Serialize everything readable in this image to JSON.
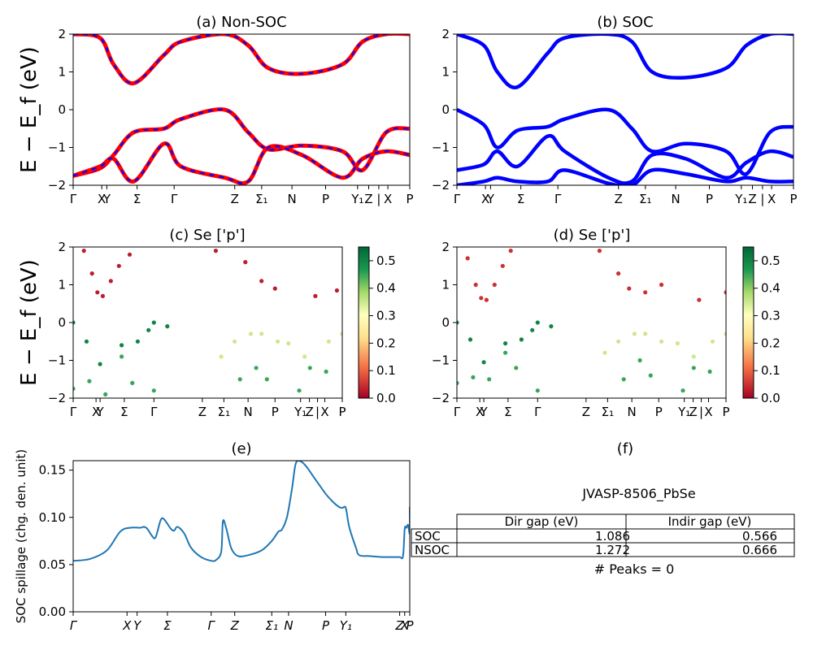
{
  "figure": {
    "ylabel_bands": "E − E_f (eV)",
    "energy_ticks": [
      "2",
      "1",
      "0",
      "−1",
      "−2"
    ],
    "kpath_ticks": [
      "Γ",
      "X",
      "Y",
      "Σ",
      "Γ",
      "Z",
      "Σ₁",
      "N",
      "P",
      "Y₁",
      "Z",
      "|",
      "X",
      "P"
    ],
    "colorbar_ticks": [
      "0.5",
      "0.4",
      "0.3",
      "0.2",
      "0.1",
      "0.0"
    ]
  },
  "panels": {
    "a": {
      "title": "(a) Non-SOC"
    },
    "b": {
      "title": "(b) SOC"
    },
    "c": {
      "title": "(c)  Se ['p']"
    },
    "d": {
      "title": "(d) Se ['p']"
    },
    "e": {
      "title": "(e)",
      "ylabel": "SOC spillage (chg. den. unit)",
      "yticks": [
        "0.15",
        "0.10",
        "0.05",
        "0.00"
      ],
      "xticks": [
        "Γ",
        "X",
        "Y",
        "Σ",
        "Γ",
        "Z",
        "Σ₁",
        "N",
        "P",
        "Y₁",
        "Z",
        "X",
        "P"
      ]
    },
    "f": {
      "title": "(f)"
    }
  },
  "table": {
    "title": "JVASP-8506_PbSe",
    "headers": [
      "Dir gap (eV)",
      "Indir gap (eV)"
    ],
    "rows": [
      {
        "label": "SOC",
        "dir": "1.086",
        "indir": "0.566"
      },
      {
        "label": "NSOC",
        "dir": "1.272",
        "indir": "0.666"
      }
    ],
    "footer": "# Peaks = 0"
  },
  "colors": {
    "nonsoc_band": "#ff0000",
    "nonsoc_dash": "#0000ff",
    "soc_band": "#0000ff",
    "spillage_line": "#1f77b4"
  },
  "chart_data": [
    {
      "type": "line",
      "panel": "a",
      "title": "(a) Non-SOC",
      "ylabel": "E − E_f (eV)",
      "ylim": [
        -2,
        2
      ],
      "x": [
        0,
        0.08,
        0.12,
        0.18,
        0.27,
        0.32,
        0.45,
        0.52,
        0.58,
        0.68,
        0.8,
        0.86,
        0.93,
        1.0
      ],
      "series": [
        {
          "name": "band1",
          "values": [
            2.0,
            1.9,
            1.2,
            0.7,
            1.45,
            1.8,
            2.0,
            1.7,
            1.1,
            0.95,
            1.2,
            1.8,
            2.0,
            2.0
          ]
        },
        {
          "name": "band2",
          "values": [
            -1.75,
            -1.55,
            -1.2,
            -0.6,
            -0.5,
            -0.25,
            0.0,
            -0.6,
            -1.05,
            -0.95,
            -1.1,
            -1.6,
            -0.6,
            -0.5
          ]
        },
        {
          "name": "band3",
          "values": [
            -1.75,
            -1.5,
            -1.3,
            -1.9,
            -0.9,
            -1.5,
            -1.8,
            -1.9,
            -1.0,
            -1.2,
            -1.8,
            -1.3,
            -1.1,
            -1.2
          ]
        }
      ]
    },
    {
      "type": "line",
      "panel": "b",
      "title": "(b) SOC",
      "ylim": [
        -2,
        2
      ],
      "x": [
        0,
        0.08,
        0.12,
        0.18,
        0.27,
        0.32,
        0.45,
        0.52,
        0.58,
        0.68,
        0.8,
        0.86,
        0.93,
        1.0
      ],
      "series": [
        {
          "name": "band1",
          "values": [
            2.0,
            1.7,
            1.0,
            0.6,
            1.5,
            1.9,
            2.0,
            1.8,
            1.0,
            0.85,
            1.1,
            1.7,
            2.0,
            2.0
          ]
        },
        {
          "name": "band2",
          "values": [
            0.0,
            -0.4,
            -1.0,
            -0.55,
            -0.45,
            -0.25,
            0.0,
            -0.5,
            -1.1,
            -0.9,
            -1.1,
            -1.7,
            -0.6,
            -0.45
          ]
        },
        {
          "name": "band3",
          "values": [
            -1.6,
            -1.45,
            -1.1,
            -1.5,
            -0.7,
            -1.1,
            -1.8,
            -1.9,
            -1.2,
            -1.3,
            -1.8,
            -1.4,
            -1.1,
            -1.25
          ]
        },
        {
          "name": "band4",
          "values": [
            -2.0,
            -1.9,
            -1.8,
            -1.9,
            -1.9,
            -1.6,
            -1.95,
            -2.0,
            -1.6,
            -1.7,
            -1.9,
            -1.8,
            -1.9,
            -1.9
          ]
        }
      ]
    },
    {
      "type": "scatter",
      "panel": "c",
      "title": "(c)  Se ['p']",
      "ylim": [
        -2,
        2
      ],
      "colorbar": {
        "min": 0.0,
        "max": 0.55,
        "cmap": "RdYlGn"
      },
      "series": [
        {
          "name": "conduction",
          "weight": 0.03,
          "points": [
            [
              0.04,
              1.9
            ],
            [
              0.07,
              1.3
            ],
            [
              0.09,
              0.8
            ],
            [
              0.11,
              0.7
            ],
            [
              0.14,
              1.1
            ],
            [
              0.17,
              1.5
            ],
            [
              0.21,
              1.8
            ],
            [
              0.53,
              1.9
            ],
            [
              0.64,
              1.6
            ],
            [
              0.7,
              1.1
            ],
            [
              0.75,
              0.9
            ],
            [
              0.9,
              0.7
            ],
            [
              0.98,
              0.85
            ]
          ]
        },
        {
          "name": "valence-top",
          "weight": 0.5,
          "points": [
            [
              0.0,
              0.0
            ],
            [
              0.05,
              -0.5
            ],
            [
              0.1,
              -1.1
            ],
            [
              0.18,
              -0.6
            ],
            [
              0.24,
              -0.5
            ],
            [
              0.28,
              -0.2
            ],
            [
              0.3,
              0.0
            ],
            [
              0.35,
              -0.1
            ]
          ]
        },
        {
          "name": "valence-mid",
          "weight": 0.35,
          "points": [
            [
              0.55,
              -0.9
            ],
            [
              0.6,
              -0.5
            ],
            [
              0.66,
              -0.3
            ],
            [
              0.7,
              -0.3
            ],
            [
              0.76,
              -0.5
            ],
            [
              0.8,
              -0.55
            ],
            [
              0.86,
              -0.9
            ],
            [
              0.95,
              -0.5
            ],
            [
              1.0,
              -0.3
            ]
          ]
        },
        {
          "name": "valence-low",
          "weight": 0.45,
          "points": [
            [
              0.0,
              -1.75
            ],
            [
              0.06,
              -1.55
            ],
            [
              0.12,
              -1.9
            ],
            [
              0.18,
              -0.9
            ],
            [
              0.22,
              -1.6
            ],
            [
              0.3,
              -1.8
            ],
            [
              0.62,
              -1.5
            ],
            [
              0.68,
              -1.2
            ],
            [
              0.72,
              -1.5
            ],
            [
              0.84,
              -1.8
            ],
            [
              0.88,
              -1.2
            ],
            [
              0.94,
              -1.3
            ]
          ]
        }
      ]
    },
    {
      "type": "scatter",
      "panel": "d",
      "title": "(d) Se ['p']",
      "ylim": [
        -2,
        2
      ],
      "colorbar": {
        "min": 0.0,
        "max": 0.55,
        "cmap": "RdYlGn"
      },
      "series": [
        {
          "name": "conduction",
          "weight": 0.05,
          "points": [
            [
              0.04,
              1.7
            ],
            [
              0.07,
              1.0
            ],
            [
              0.09,
              0.65
            ],
            [
              0.11,
              0.6
            ],
            [
              0.14,
              1.0
            ],
            [
              0.17,
              1.5
            ],
            [
              0.2,
              1.9
            ],
            [
              0.53,
              1.9
            ],
            [
              0.6,
              1.3
            ],
            [
              0.64,
              0.9
            ],
            [
              0.7,
              0.8
            ],
            [
              0.76,
              1.0
            ],
            [
              0.9,
              0.6
            ],
            [
              1.0,
              0.8
            ]
          ]
        },
        {
          "name": "valence-top",
          "weight": 0.5,
          "points": [
            [
              0.0,
              0.0
            ],
            [
              0.05,
              -0.45
            ],
            [
              0.1,
              -1.05
            ],
            [
              0.18,
              -0.55
            ],
            [
              0.24,
              -0.45
            ],
            [
              0.28,
              -0.2
            ],
            [
              0.3,
              0.0
            ],
            [
              0.35,
              -0.1
            ]
          ]
        },
        {
          "name": "valence-mid",
          "weight": 0.35,
          "points": [
            [
              0.55,
              -0.8
            ],
            [
              0.6,
              -0.5
            ],
            [
              0.66,
              -0.3
            ],
            [
              0.7,
              -0.3
            ],
            [
              0.76,
              -0.5
            ],
            [
              0.82,
              -0.55
            ],
            [
              0.88,
              -0.9
            ],
            [
              0.95,
              -0.5
            ],
            [
              1.0,
              -0.3
            ]
          ]
        },
        {
          "name": "valence-low",
          "weight": 0.45,
          "points": [
            [
              0.0,
              -1.6
            ],
            [
              0.06,
              -1.45
            ],
            [
              0.12,
              -1.5
            ],
            [
              0.18,
              -0.8
            ],
            [
              0.22,
              -1.2
            ],
            [
              0.3,
              -1.8
            ],
            [
              0.62,
              -1.5
            ],
            [
              0.68,
              -1.0
            ],
            [
              0.72,
              -1.4
            ],
            [
              0.84,
              -1.8
            ],
            [
              0.88,
              -1.2
            ],
            [
              0.94,
              -1.3
            ]
          ]
        }
      ]
    },
    {
      "type": "line",
      "panel": "e",
      "title": "(e)",
      "ylabel": "SOC spillage (chg. den. unit)",
      "ylim": [
        0,
        0.16
      ],
      "series": [
        {
          "name": "spillage",
          "points": [
            [
              0.0,
              0.054
            ],
            [
              0.05,
              0.056
            ],
            [
              0.1,
              0.065
            ],
            [
              0.14,
              0.085
            ],
            [
              0.17,
              0.089
            ],
            [
              0.2,
              0.089
            ],
            [
              0.21,
              0.09
            ],
            [
              0.22,
              0.088
            ],
            [
              0.235,
              0.08
            ],
            [
              0.245,
              0.079
            ],
            [
              0.26,
              0.097
            ],
            [
              0.27,
              0.098
            ],
            [
              0.29,
              0.088
            ],
            [
              0.3,
              0.086
            ],
            [
              0.31,
              0.09
            ],
            [
              0.33,
              0.083
            ],
            [
              0.35,
              0.068
            ],
            [
              0.38,
              0.058
            ],
            [
              0.41,
              0.054
            ],
            [
              0.425,
              0.055
            ],
            [
              0.44,
              0.064
            ],
            [
              0.445,
              0.096
            ],
            [
              0.455,
              0.088
            ],
            [
              0.47,
              0.067
            ],
            [
              0.49,
              0.059
            ],
            [
              0.52,
              0.06
            ],
            [
              0.56,
              0.065
            ],
            [
              0.59,
              0.075
            ],
            [
              0.61,
              0.085
            ],
            [
              0.62,
              0.087
            ],
            [
              0.635,
              0.1
            ],
            [
              0.65,
              0.13
            ],
            [
              0.66,
              0.155
            ],
            [
              0.67,
              0.16
            ],
            [
              0.69,
              0.155
            ],
            [
              0.72,
              0.14
            ],
            [
              0.75,
              0.125
            ],
            [
              0.77,
              0.117
            ],
            [
              0.79,
              0.111
            ],
            [
              0.8,
              0.11
            ],
            [
              0.81,
              0.11
            ],
            [
              0.82,
              0.09
            ],
            [
              0.84,
              0.068
            ],
            [
              0.85,
              0.06
            ],
            [
              0.88,
              0.059
            ],
            [
              0.92,
              0.058
            ],
            [
              0.95,
              0.058
            ],
            [
              0.97,
              0.058
            ],
            [
              0.98,
              0.059
            ],
            [
              0.985,
              0.088
            ],
            [
              0.99,
              0.089
            ],
            [
              0.995,
              0.092
            ],
            [
              1.0,
              0.083
            ],
            [
              1.005,
              0.108
            ],
            [
              1.01,
              0.11
            ]
          ]
        }
      ]
    }
  ]
}
